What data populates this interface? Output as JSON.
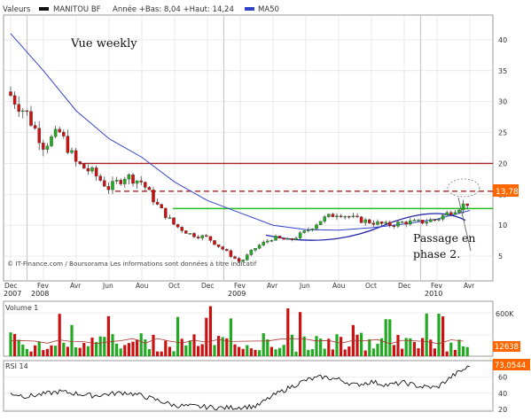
{
  "header": {
    "valeurs_label": "Valeurs",
    "ticker": "MANITOU BF",
    "range_text": "Année +Bas: 8,04 +Haut: 14,24",
    "ma_label": "MA50"
  },
  "annotations": {
    "view_label": "Vue weekly",
    "phase_line1": "Passage en",
    "phase_line2": "phase 2.",
    "source": "© IT-Finance.com / Boursorama Les informations sont données à titre indicatif"
  },
  "time_axis": {
    "months": [
      "Dec",
      "Fev",
      "Avr",
      "Jun",
      "Aou",
      "Oct",
      "Dec",
      "Fev",
      "Avr",
      "Jun",
      "Aou",
      "Oct",
      "Dec",
      "Fev",
      "Avr"
    ],
    "years": [
      "2007",
      "2008",
      "2009",
      "2010"
    ]
  },
  "price_axis": {
    "ticks": [
      "40",
      "35",
      "30",
      "25",
      "20",
      "15",
      "10",
      "5"
    ]
  },
  "last_price_label": "13,78",
  "volume_panel": {
    "title": "Volume 1",
    "tick": "600K",
    "last_label": "12638"
  },
  "rsi_panel": {
    "title": "RSI 14",
    "ticks": [
      "60",
      "40",
      "20"
    ],
    "last_label": "73,0544"
  },
  "colors": {
    "up": "#22aa22",
    "down": "#cc1111",
    "ma": "#3344cc",
    "resistance": "#aa2222",
    "support": "#22bb22",
    "trendline": "#2222aa",
    "grid": "#dcdcdc"
  },
  "chart_data": [
    {
      "type": "candlestick",
      "title": "MANITOU BF",
      "timeframe": "weekly",
      "yticks": [
        5,
        10,
        15,
        20,
        25,
        30,
        35,
        40
      ],
      "ylim": [
        1,
        44
      ],
      "grid": true,
      "series": [
        {
          "name": "MANITOU BF",
          "x": [
            "2007-12",
            "2008-01",
            "2008-02",
            "2008-03",
            "2008-04",
            "2008-05",
            "2008-06",
            "2008-07",
            "2008-08",
            "2008-09",
            "2008-10",
            "2008-11",
            "2008-12",
            "2009-01",
            "2009-02",
            "2009-03",
            "2009-04",
            "2009-05",
            "2009-06",
            "2009-07",
            "2009-08",
            "2009-09",
            "2009-10",
            "2009-11",
            "2009-12",
            "2010-01",
            "2010-02",
            "2010-03",
            "2010-04"
          ],
          "values": [
            31,
            28,
            23,
            25,
            20,
            18.5,
            16,
            18,
            17,
            13,
            10,
            8.5,
            8,
            6,
            4,
            6.5,
            8,
            7.5,
            9,
            11,
            12,
            11,
            10.5,
            10,
            10.5,
            10.5,
            11,
            12.5,
            13.78
          ]
        },
        {
          "name": "MA50",
          "x": [
            "2007-12",
            "2008-02",
            "2008-04",
            "2008-06",
            "2008-08",
            "2008-10",
            "2008-12",
            "2009-02",
            "2009-04",
            "2009-06",
            "2009-08",
            "2009-10",
            "2009-12",
            "2010-02",
            "2010-04"
          ],
          "values": [
            41,
            35,
            28.5,
            24,
            21,
            17,
            14,
            12,
            10,
            9.3,
            9.2,
            9.6,
            10.2,
            11,
            12.4
          ]
        }
      ],
      "horizontal_lines": [
        {
          "value": 20,
          "style": "solid",
          "color": "resistance"
        },
        {
          "value": 15.5,
          "style": "dashed",
          "color": "resistance"
        },
        {
          "value": 12.7,
          "style": "solid",
          "color": "support"
        }
      ],
      "last_value": 13.78
    },
    {
      "type": "bar",
      "title": "Volume 1",
      "ylim": [
        0,
        700000
      ],
      "yticks": [
        600000
      ],
      "last_value": 12638
    },
    {
      "type": "line",
      "title": "RSI 14",
      "ylim": [
        18,
        80
      ],
      "yticks": [
        20,
        40,
        60
      ],
      "x": [
        "2007-12",
        "2008-01",
        "2008-03",
        "2008-05",
        "2008-07",
        "2008-08",
        "2008-10",
        "2008-12",
        "2009-01",
        "2009-03",
        "2009-04",
        "2009-05",
        "2009-06",
        "2009-07",
        "2009-08",
        "2009-09",
        "2009-10",
        "2009-11",
        "2009-12",
        "2010-01",
        "2010-02",
        "2010-03",
        "2010-04"
      ],
      "values": [
        40,
        36,
        42,
        37,
        41,
        37,
        25,
        23,
        22,
        24,
        37,
        47,
        56,
        60,
        57,
        50,
        54,
        50,
        53,
        48,
        47,
        62,
        73.0544
      ]
    }
  ]
}
